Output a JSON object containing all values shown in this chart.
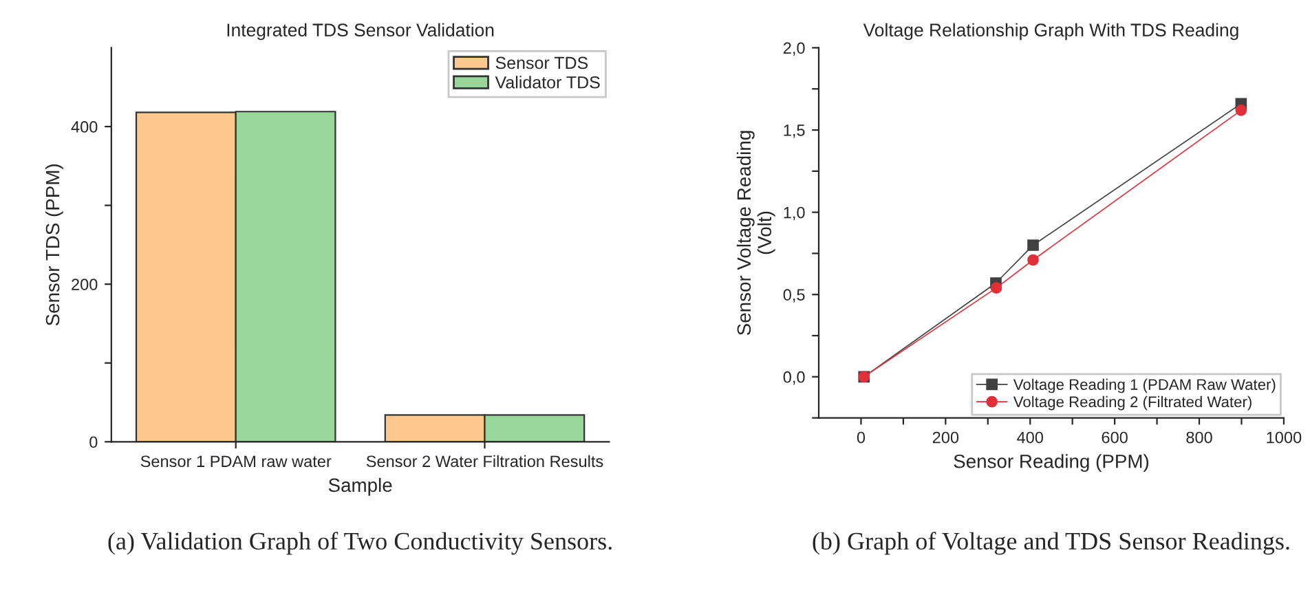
{
  "chart_data": [
    {
      "type": "bar",
      "title": "Integrated TDS Sensor Validation",
      "xlabel": "Sample",
      "ylabel": "Sensor TDS (PPM)",
      "categories": [
        "Sensor 1 PDAM raw water",
        "Sensor 2 Water Filtration Results"
      ],
      "series": [
        {
          "name": "Sensor TDS",
          "color": "#fdc98f",
          "values": [
            418,
            34
          ]
        },
        {
          "name": "Validator TDS",
          "color": "#98d69a",
          "values": [
            419,
            34
          ]
        }
      ],
      "ylim": [
        0,
        500
      ],
      "yticks": [
        0,
        {
          "value": 100,
          "label": null
        },
        200,
        {
          "value": 300,
          "label": null
        },
        400
      ],
      "legend": "top right",
      "grid": false,
      "annotations": [
        "(a) Validation Graph of Two Conductivity Sensors."
      ]
    },
    {
      "type": "line",
      "title": "Voltage Relationship Graph With TDS Reading",
      "xlabel": "Sensor Reading (PPM)",
      "ylabel": "Sensor Voltage Reading\n(Volt)",
      "series": [
        {
          "name": "Voltage Reading 1 (PDAM Raw Water)",
          "color": "#404040",
          "marker": "square",
          "x": [
            7,
            319,
            407,
            899
          ],
          "values": [
            0,
            0.57,
            0.8,
            1.66
          ]
        },
        {
          "name": "Voltage Reading 2 (Filtrated Water)",
          "color": "#e0303a",
          "marker": "circle",
          "x": [
            7,
            320,
            407,
            899
          ],
          "values": [
            0,
            0.54,
            0.71,
            1.62
          ]
        }
      ],
      "xlim": [
        -100,
        1000
      ],
      "xticks": [
        0,
        {
          "value": 100,
          "label": null
        },
        200,
        {
          "value": 300,
          "label": null
        },
        400,
        {
          "value": 500,
          "label": null
        },
        600,
        {
          "value": 700,
          "label": null
        },
        800,
        {
          "value": 900,
          "label": null
        },
        1000
      ],
      "ylim": [
        -0.25,
        2.0
      ],
      "yticks": [
        {
          "value": -0.25,
          "label": null
        },
        {
          "value": 0,
          "label": "0,0"
        },
        {
          "value": 0.25,
          "label": null
        },
        {
          "value": 0.5,
          "label": "0,5"
        },
        {
          "value": 0.75,
          "label": null
        },
        {
          "value": 1.0,
          "label": "1,0"
        },
        {
          "value": 1.25,
          "label": null
        },
        {
          "value": 1.5,
          "label": "1,5"
        },
        {
          "value": 1.75,
          "label": null
        },
        {
          "value": 2.0,
          "label": "2,0"
        }
      ],
      "legend": "bottom right",
      "grid": false,
      "line_style": "solid",
      "annotations": [
        "(b) Graph of Voltage and TDS Sensor Readings."
      ]
    }
  ]
}
